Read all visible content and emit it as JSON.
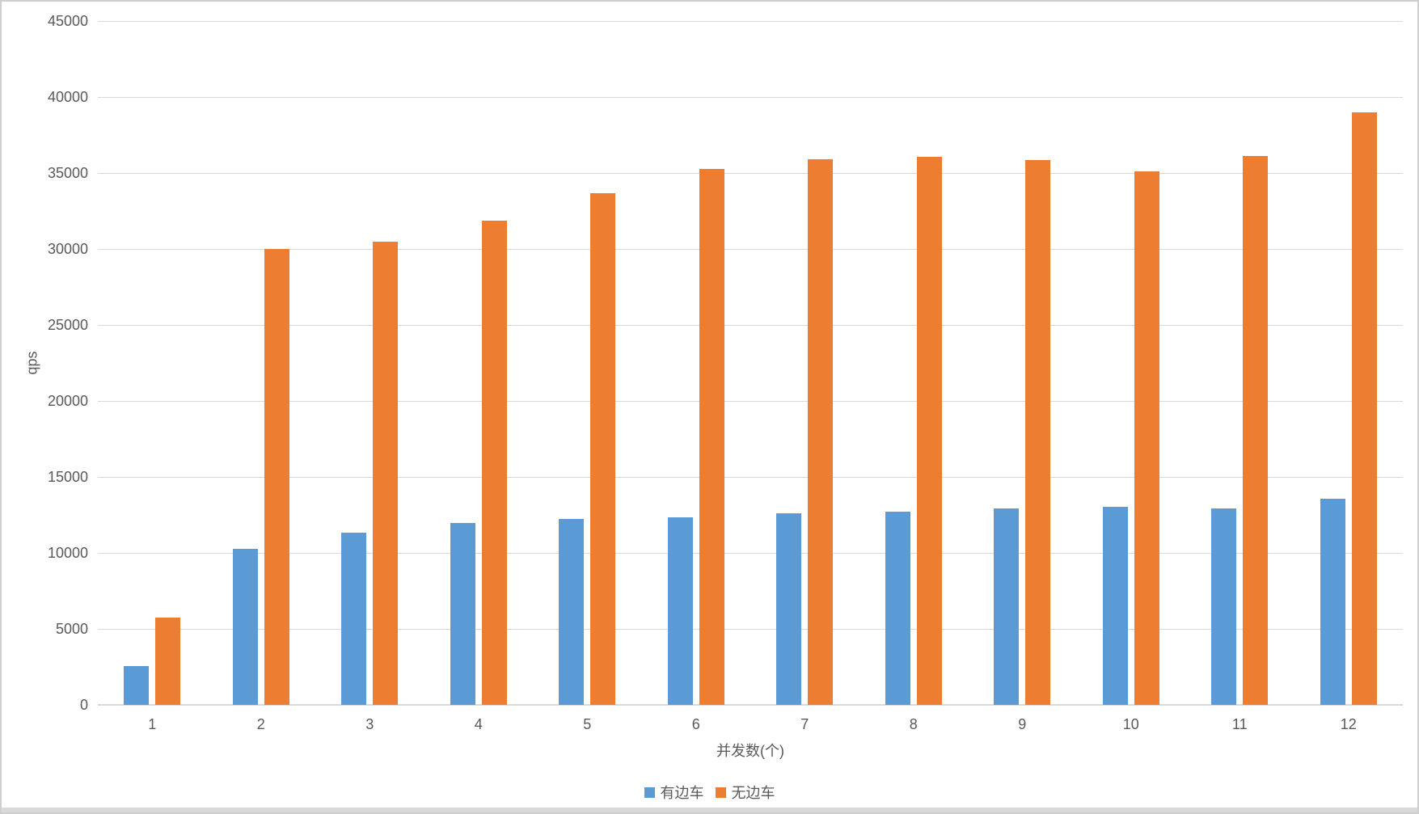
{
  "chart_data": {
    "type": "bar",
    "title": "",
    "xlabel": "并发数(个)",
    "ylabel": "qps",
    "categories": [
      "1",
      "2",
      "3",
      "4",
      "5",
      "6",
      "7",
      "8",
      "9",
      "10",
      "11",
      "12"
    ],
    "series": [
      {
        "name": "有边车",
        "color": "#5B9BD5",
        "values": [
          2550,
          10250,
          11350,
          11950,
          12250,
          12350,
          12600,
          12700,
          12950,
          13050,
          12950,
          13550
        ]
      },
      {
        "name": "无边车",
        "color": "#ED7D31",
        "values": [
          5750,
          30000,
          30500,
          31850,
          33650,
          35250,
          35900,
          36050,
          35850,
          35100,
          36100,
          39000
        ]
      }
    ],
    "ylim": [
      0,
      45000
    ],
    "ytick_step": 5000,
    "y_ticks": [
      "0",
      "5000",
      "10000",
      "15000",
      "20000",
      "25000",
      "30000",
      "35000",
      "40000",
      "45000"
    ],
    "grid": true,
    "gridline_color": "#D9D9D9",
    "tick_label_color": "#595959",
    "legend_position": "bottom"
  }
}
